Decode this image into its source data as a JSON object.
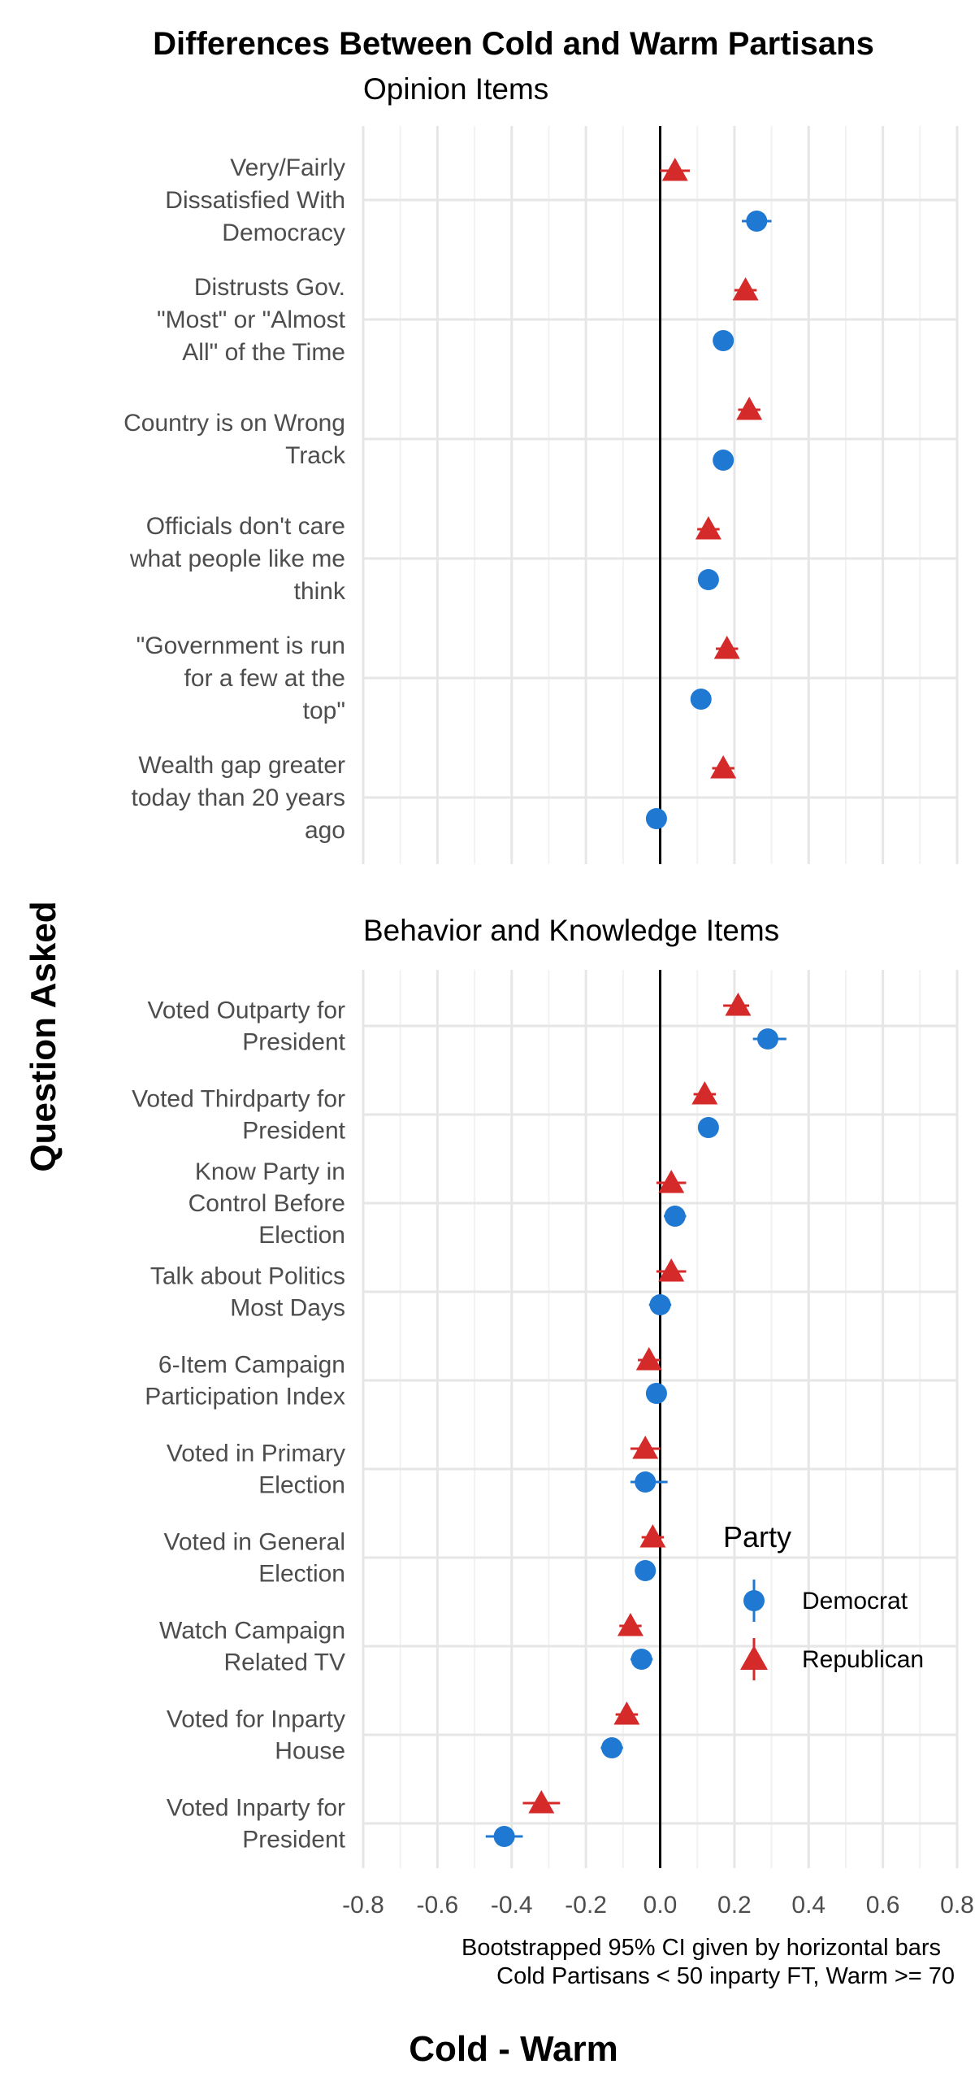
{
  "chart_data": {
    "type": "dot-errorbar",
    "title": "Differences Between Cold and Warm Partisans",
    "xlabel": "Cold - Warm",
    "ylabel": "Question Asked",
    "caption": [
      "Bootstrapped 95% CI given by horizontal bars",
      "Cold Partisans < 50 inparty FT, Warm >= 70"
    ],
    "xlim": [
      -0.8,
      0.8
    ],
    "x_ticks": [
      -0.8,
      -0.6,
      -0.4,
      -0.2,
      0.0,
      0.2,
      0.4,
      0.6,
      0.8
    ],
    "x_tick_labels": [
      "-0.8",
      "-0.6",
      "-0.4",
      "-0.2",
      "0.0",
      "0.2",
      "0.4",
      "0.6",
      "0.8"
    ],
    "reference_line": 0,
    "grid": true,
    "legend": {
      "title": "Party",
      "position": "right",
      "entries": [
        {
          "name": "Democrat",
          "color": "#1f78d1",
          "shape": "circle"
        },
        {
          "name": "Republican",
          "color": "#d42a2a",
          "shape": "triangle"
        }
      ]
    },
    "panels": [
      {
        "title": "Opinion Items",
        "items": [
          {
            "label": [
              "Very/Fairly",
              "Dissatisfied With",
              "Democracy"
            ],
            "democrat": {
              "value": 0.26,
              "ci": [
                0.22,
                0.3
              ]
            },
            "republican": {
              "value": 0.04,
              "ci": [
                0.0,
                0.08
              ]
            }
          },
          {
            "label": [
              "Distrusts Gov.",
              "\"Most\" or \"Almost",
              "All\" of the Time"
            ],
            "democrat": {
              "value": 0.17,
              "ci": [
                0.15,
                0.19
              ]
            },
            "republican": {
              "value": 0.23,
              "ci": [
                0.2,
                0.26
              ]
            }
          },
          {
            "label": [
              "Country is on Wrong",
              "Track"
            ],
            "democrat": {
              "value": 0.17,
              "ci": [
                0.15,
                0.19
              ]
            },
            "republican": {
              "value": 0.24,
              "ci": [
                0.21,
                0.27
              ]
            }
          },
          {
            "label": [
              "Officials don't care",
              "what people like me",
              "think"
            ],
            "democrat": {
              "value": 0.13,
              "ci": [
                0.11,
                0.15
              ]
            },
            "republican": {
              "value": 0.13,
              "ci": [
                0.1,
                0.16
              ]
            }
          },
          {
            "label": [
              "\"Government is run",
              "for a few at the",
              "top\""
            ],
            "democrat": {
              "value": 0.11,
              "ci": [
                0.09,
                0.13
              ]
            },
            "republican": {
              "value": 0.18,
              "ci": [
                0.15,
                0.21
              ]
            }
          },
          {
            "label": [
              "Wealth gap greater",
              "today than 20 years",
              "ago"
            ],
            "democrat": {
              "value": -0.01,
              "ci": [
                -0.03,
                0.01
              ]
            },
            "republican": {
              "value": 0.17,
              "ci": [
                0.14,
                0.2
              ]
            }
          }
        ]
      },
      {
        "title": "Behavior and Knowledge Items",
        "items": [
          {
            "label": [
              "Voted Outparty for",
              "President"
            ],
            "democrat": {
              "value": 0.29,
              "ci": [
                0.25,
                0.34
              ]
            },
            "republican": {
              "value": 0.21,
              "ci": [
                0.17,
                0.24
              ]
            }
          },
          {
            "label": [
              "Voted Thirdparty for",
              "President"
            ],
            "democrat": {
              "value": 0.13,
              "ci": [
                0.11,
                0.15
              ]
            },
            "republican": {
              "value": 0.12,
              "ci": [
                0.09,
                0.15
              ]
            }
          },
          {
            "label": [
              "Know Party in",
              "Control Before",
              "Election"
            ],
            "democrat": {
              "value": 0.04,
              "ci": [
                0.01,
                0.07
              ]
            },
            "republican": {
              "value": 0.03,
              "ci": [
                -0.01,
                0.07
              ]
            }
          },
          {
            "label": [
              "Talk about Politics",
              "Most Days"
            ],
            "democrat": {
              "value": 0.0,
              "ci": [
                -0.03,
                0.03
              ]
            },
            "republican": {
              "value": 0.03,
              "ci": [
                -0.01,
                0.07
              ]
            }
          },
          {
            "label": [
              "6-Item Campaign",
              "Participation Index"
            ],
            "democrat": {
              "value": -0.01,
              "ci": [
                -0.03,
                0.01
              ]
            },
            "republican": {
              "value": -0.03,
              "ci": [
                -0.06,
                0.0
              ]
            }
          },
          {
            "label": [
              "Voted in Primary",
              "Election"
            ],
            "democrat": {
              "value": -0.04,
              "ci": [
                -0.08,
                0.02
              ]
            },
            "republican": {
              "value": -0.04,
              "ci": [
                -0.08,
                0.0
              ]
            }
          },
          {
            "label": [
              "Voted in General",
              "Election"
            ],
            "democrat": {
              "value": -0.04,
              "ci": [
                -0.06,
                -0.02
              ]
            },
            "republican": {
              "value": -0.02,
              "ci": [
                -0.05,
                0.01
              ]
            }
          },
          {
            "label": [
              "Watch Campaign",
              "Related TV"
            ],
            "democrat": {
              "value": -0.05,
              "ci": [
                -0.08,
                -0.02
              ]
            },
            "republican": {
              "value": -0.08,
              "ci": [
                -0.11,
                -0.05
              ]
            }
          },
          {
            "label": [
              "Voted for Inparty",
              "House"
            ],
            "democrat": {
              "value": -0.13,
              "ci": [
                -0.16,
                -0.1
              ]
            },
            "republican": {
              "value": -0.09,
              "ci": [
                -0.12,
                -0.06
              ]
            }
          },
          {
            "label": [
              "Voted Inparty for",
              "President"
            ],
            "democrat": {
              "value": -0.42,
              "ci": [
                -0.47,
                -0.37
              ]
            },
            "republican": {
              "value": -0.32,
              "ci": [
                -0.37,
                -0.27
              ]
            }
          }
        ]
      }
    ]
  }
}
